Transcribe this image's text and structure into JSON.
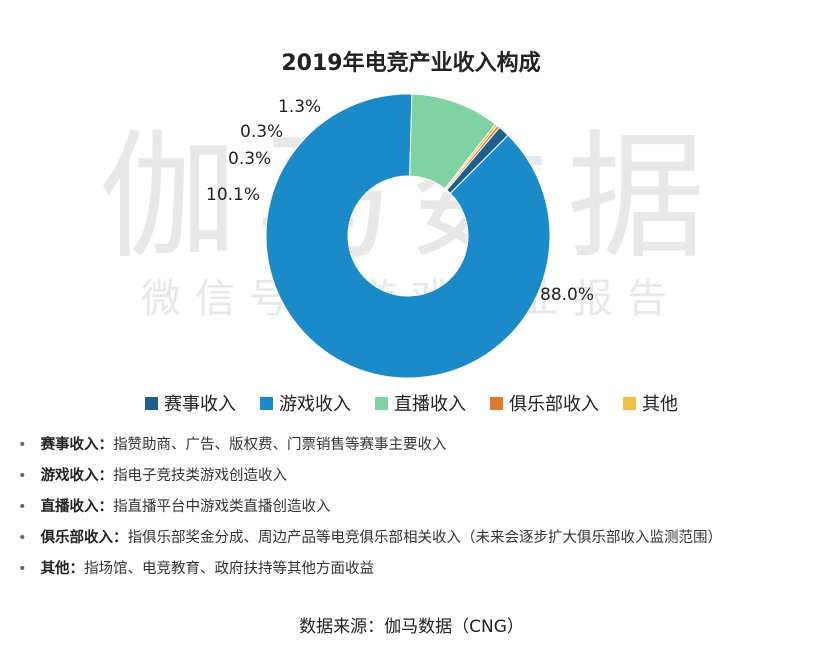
{
  "chart_data": {
    "type": "pie",
    "variant": "donut",
    "title": "2019年电竞产业收入构成",
    "categories": [
      "赛事收入",
      "游戏收入",
      "直播收入",
      "俱乐部收入",
      "其他"
    ],
    "values": [
      1.3,
      88.0,
      10.1,
      0.3,
      0.3
    ],
    "data_labels": [
      "1.3%",
      "88.0%",
      "10.1%",
      "0.3%",
      "0.3%"
    ],
    "colors": [
      "#1f5f8b",
      "#1a8bc8",
      "#7fd3a3",
      "#e07a2a",
      "#f0c040"
    ],
    "legend_position": "bottom"
  },
  "watermark": {
    "line1": "伽马数据",
    "line2": "微信号：游戏产业报告"
  },
  "notes": [
    {
      "term": "赛事收入：",
      "desc": "指赞助商、广告、版权费、门票销售等赛事主要收入"
    },
    {
      "term": "游戏收入：",
      "desc": "指电子竞技类游戏创造收入"
    },
    {
      "term": "直播收入：",
      "desc": "指直播平台中游戏类直播创造收入"
    },
    {
      "term": "俱乐部收入：",
      "desc": "指俱乐部奖金分成、周边产品等电竞俱乐部相关收入（未来会逐步扩大俱乐部收入监测范围）"
    },
    {
      "term": "其他：",
      "desc": "指场馆、电竞教育、政府扶持等其他方面收益"
    }
  ],
  "source": "数据来源：伽马数据（CNG）"
}
